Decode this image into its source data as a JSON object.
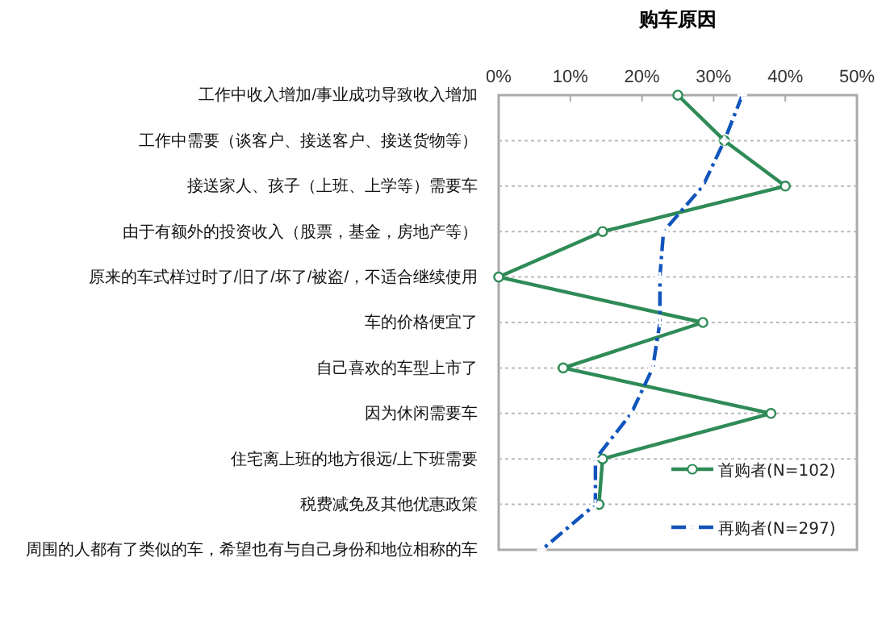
{
  "chart_data": {
    "type": "line",
    "orientation": "horizontal",
    "title": "购车原因",
    "categories": [
      "工作中收入增加/事业成功导致收入增加",
      "工作中需要（谈客户、接送客户、接送货物等）",
      "接送家人、孩子（上班、上学等）需要车",
      "由于有额外的投资收入（股票，基金，房地产等）",
      "原来的车式样过时了/旧了/坏了/被盗/，不适合继续使用",
      "车的价格便宜了",
      "自己喜欢的车型上市了",
      "因为休闲需要车",
      "住宅离上班的地方很远/上下班需要",
      "税费减免及其他优惠政策",
      "周围的人都有了类似的车，希望也有与自己身份和地位相称的车"
    ],
    "series": [
      {
        "name": "首购者(N=102)",
        "color": "#2e8b57",
        "marker": "circle",
        "line_style": "solid",
        "values": [
          25,
          31.5,
          40,
          14.5,
          0,
          28.5,
          9,
          38,
          14.5,
          14,
          null
        ]
      },
      {
        "name": "再购者(N=297)",
        "color": "#1155bb",
        "marker": "cross",
        "line_style": "dashed",
        "values": [
          34,
          31.5,
          28.5,
          23,
          22.5,
          22.5,
          21.5,
          18.5,
          13.5,
          13.5,
          6
        ]
      }
    ],
    "xlim": [
      0,
      50
    ],
    "xticks": [
      {
        "value": 0,
        "label": "0%"
      },
      {
        "value": 10,
        "label": "10%"
      },
      {
        "value": 20,
        "label": "20%"
      },
      {
        "value": 30,
        "label": "30%"
      },
      {
        "value": 40,
        "label": "40%"
      },
      {
        "value": 50,
        "label": "50%"
      }
    ],
    "grid": "y",
    "legend": "bottom right"
  }
}
